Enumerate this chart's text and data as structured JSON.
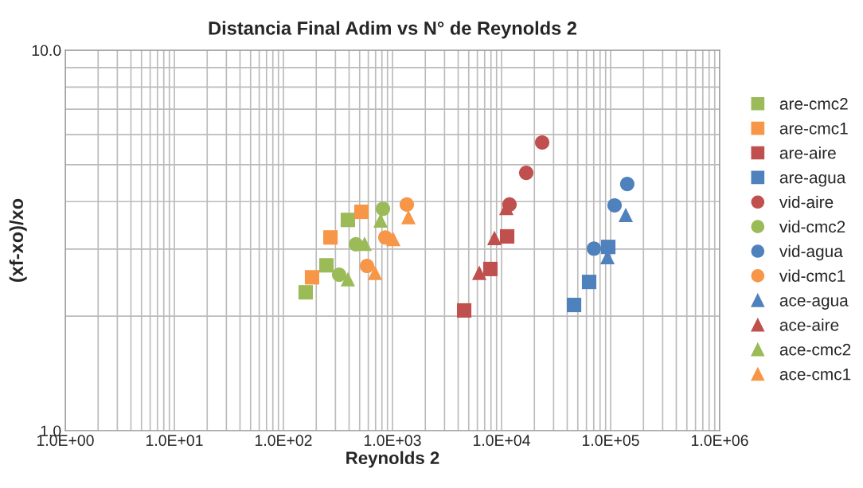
{
  "chart_data": {
    "type": "scatter",
    "title": "Distancia Final Adim vs N° de Reynolds 2",
    "xlabel": "Reynolds 2",
    "ylabel": "(xf-xo)/xo",
    "log": "xy",
    "grid": true,
    "legend": "right",
    "xlim": [
      1,
      1000000
    ],
    "ylim": [
      1,
      10
    ],
    "xticks": [
      {
        "value": 1,
        "label": "1.0E+00"
      },
      {
        "value": 10,
        "label": "1.0E+01"
      },
      {
        "value": 100,
        "label": "1.0E+02"
      },
      {
        "value": 1000,
        "label": "1.0E+03"
      },
      {
        "value": 10000,
        "label": "1.0E+04"
      },
      {
        "value": 100000,
        "label": "1.0E+05"
      },
      {
        "value": 1000000,
        "label": "1.0E+06"
      }
    ],
    "yticks": [
      {
        "value": 1,
        "label": "1.0"
      },
      {
        "value": 10,
        "label": "10.0"
      }
    ],
    "series": [
      {
        "name": "are-cmc2",
        "color": "#9bbb59",
        "marker": "square",
        "x": [
          160,
          248,
          390
        ],
        "values": [
          2.31,
          2.72,
          3.58
        ]
      },
      {
        "name": "are-cmc1",
        "color": "#f79646",
        "marker": "square",
        "x": [
          183,
          270,
          519
        ],
        "values": [
          2.53,
          3.22,
          3.76
        ]
      },
      {
        "name": "are-aire",
        "color": "#c0504d",
        "marker": "square",
        "x": [
          4540,
          7900,
          11250
        ],
        "values": [
          2.07,
          2.66,
          3.24
        ]
      },
      {
        "name": "are-agua",
        "color": "#4f81bd",
        "marker": "square",
        "x": [
          46200,
          63500,
          95100
        ],
        "values": [
          2.14,
          2.46,
          3.04
        ]
      },
      {
        "name": "vid-aire",
        "color": "#c0504d",
        "marker": "circle",
        "x": [
          11830,
          16830,
          23570
        ],
        "values": [
          3.93,
          4.76,
          5.72
        ]
      },
      {
        "name": "vid-cmc2",
        "color": "#9bbb59",
        "marker": "circle",
        "x": [
          324,
          462,
          817
        ],
        "values": [
          2.57,
          3.09,
          3.83
        ]
      },
      {
        "name": "vid-agua",
        "color": "#4f81bd",
        "marker": "circle",
        "x": [
          70300,
          108700,
          142000
        ],
        "values": [
          3.01,
          3.91,
          4.45
        ]
      },
      {
        "name": "vid-cmc1",
        "color": "#f79646",
        "marker": "circle",
        "x": [
          584,
          860,
          1353
        ],
        "values": [
          2.71,
          3.22,
          3.93
        ]
      },
      {
        "name": "ace-agua",
        "color": "#4f81bd",
        "marker": "triangle",
        "x": [
          93500,
          137600
        ],
        "values": [
          2.86,
          3.69
        ]
      },
      {
        "name": "ace-aire",
        "color": "#c0504d",
        "marker": "triangle",
        "x": [
          6250,
          8600,
          11060
        ],
        "values": [
          2.6,
          3.21,
          3.85
        ]
      },
      {
        "name": "ace-cmc2",
        "color": "#9bbb59",
        "marker": "triangle",
        "x": [
          390,
          555,
          777
        ],
        "values": [
          2.5,
          3.1,
          3.57
        ]
      },
      {
        "name": "ace-cmc1",
        "color": "#f79646",
        "marker": "triangle",
        "x": [
          691,
          1017,
          1400
        ],
        "values": [
          2.6,
          3.19,
          3.64
        ]
      }
    ]
  }
}
